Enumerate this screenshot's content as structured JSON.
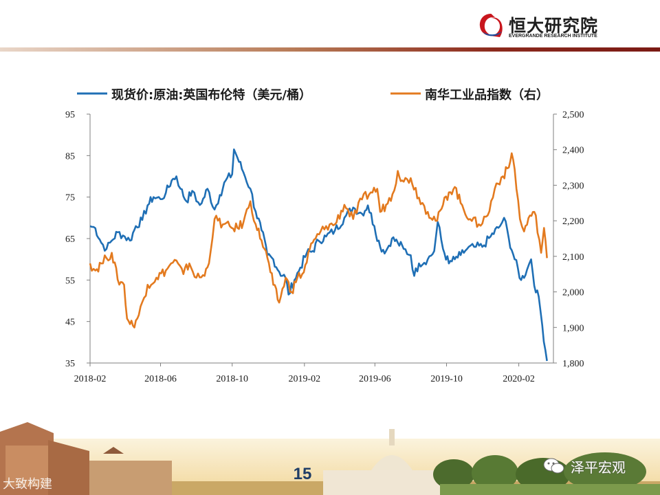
{
  "header": {
    "logo_cn": "恒大研究院",
    "logo_en": "EVERGRANDE RESEARCH INSTITUTE"
  },
  "footer": {
    "page_number": "15",
    "watermark_left": "大致构建",
    "watermark_right": "泽平宏观"
  },
  "colors": {
    "brent": "#1f6fb5",
    "nanhua": "#e37a1f",
    "header_rule_dark": "#7a1a14"
  },
  "chart_data": {
    "type": "line",
    "legend": {
      "position": "top",
      "entries": [
        "现货价:原油:英国布伦特（美元/桶）",
        "南华工业品指数（右）"
      ]
    },
    "x_tick_labels": [
      "2018-02",
      "2018-06",
      "2018-10",
      "2019-02",
      "2019-06",
      "2019-10",
      "2020-02"
    ],
    "x_range": [
      "2018-02-01",
      "2020-03-31"
    ],
    "y_left": {
      "range": [
        35,
        95
      ],
      "ticks": [
        "35",
        "45",
        "55",
        "65",
        "75",
        "85",
        "95"
      ]
    },
    "y_right": {
      "range": [
        1800,
        2500
      ],
      "ticks": [
        "1,800",
        "1,900",
        "2,000",
        "2,100",
        "2,200",
        "2,300",
        "2,400",
        "2,500"
      ]
    },
    "grid": false,
    "series": [
      {
        "name": "现货价:原油:英国布伦特（美元/桶）",
        "axis": "left",
        "points": [
          [
            "2018-02-01",
            68
          ],
          [
            "2018-02-10",
            67.5
          ],
          [
            "2018-02-20",
            64
          ],
          [
            "2018-03-01",
            62.5
          ],
          [
            "2018-03-10",
            64.5
          ],
          [
            "2018-03-20",
            66.5
          ],
          [
            "2018-04-01",
            65.5
          ],
          [
            "2018-04-10",
            64.5
          ],
          [
            "2018-04-20",
            68
          ],
          [
            "2018-05-01",
            69.5
          ],
          [
            "2018-05-10",
            73
          ],
          [
            "2018-05-20",
            75
          ],
          [
            "2018-06-01",
            74.5
          ],
          [
            "2018-06-10",
            76
          ],
          [
            "2018-06-20",
            79
          ],
          [
            "2018-06-28",
            80
          ],
          [
            "2018-07-05",
            77
          ],
          [
            "2018-07-15",
            74
          ],
          [
            "2018-07-25",
            76.5
          ],
          [
            "2018-08-01",
            74
          ],
          [
            "2018-08-10",
            73.5
          ],
          [
            "2018-08-20",
            77
          ],
          [
            "2018-09-01",
            72
          ],
          [
            "2018-09-10",
            75.5
          ],
          [
            "2018-09-20",
            79
          ],
          [
            "2018-10-01",
            80.5
          ],
          [
            "2018-10-04",
            86.5
          ],
          [
            "2018-10-10",
            84.5
          ],
          [
            "2018-10-20",
            81
          ],
          [
            "2018-11-01",
            77
          ],
          [
            "2018-11-10",
            71.5
          ],
          [
            "2018-11-20",
            67
          ],
          [
            "2018-11-30",
            61
          ],
          [
            "2018-12-10",
            60
          ],
          [
            "2018-12-20",
            57
          ],
          [
            "2018-12-31",
            55.5
          ],
          [
            "2019-01-05",
            51.5
          ],
          [
            "2019-01-15",
            55
          ],
          [
            "2019-01-25",
            58
          ],
          [
            "2019-02-05",
            61.5
          ],
          [
            "2019-02-15",
            62
          ],
          [
            "2019-02-25",
            64.5
          ],
          [
            "2019-03-10",
            65.5
          ],
          [
            "2019-03-25",
            67
          ],
          [
            "2019-04-10",
            70
          ],
          [
            "2019-04-25",
            72.5
          ],
          [
            "2019-05-10",
            71
          ],
          [
            "2019-05-20",
            73
          ],
          [
            "2019-05-31",
            68
          ],
          [
            "2019-06-10",
            63
          ],
          [
            "2019-06-20",
            62
          ],
          [
            "2019-06-30",
            65
          ],
          [
            "2019-07-10",
            64
          ],
          [
            "2019-07-20",
            62.5
          ],
          [
            "2019-08-01",
            61
          ],
          [
            "2019-08-07",
            56
          ],
          [
            "2019-08-15",
            59
          ],
          [
            "2019-08-30",
            60
          ],
          [
            "2019-09-10",
            62
          ],
          [
            "2019-09-16",
            69
          ],
          [
            "2019-09-25",
            62.5
          ],
          [
            "2019-10-05",
            59
          ],
          [
            "2019-10-15",
            60
          ],
          [
            "2019-10-25",
            61
          ],
          [
            "2019-11-05",
            62.5
          ],
          [
            "2019-11-20",
            63
          ],
          [
            "2019-12-01",
            63
          ],
          [
            "2019-12-15",
            65.5
          ],
          [
            "2019-12-31",
            68
          ],
          [
            "2020-01-07",
            70
          ],
          [
            "2020-01-15",
            65
          ],
          [
            "2020-01-25",
            60
          ],
          [
            "2020-02-05",
            55
          ],
          [
            "2020-02-15",
            57.5
          ],
          [
            "2020-02-22",
            60
          ],
          [
            "2020-03-01",
            52
          ],
          [
            "2020-03-06",
            51
          ],
          [
            "2020-03-12",
            44
          ],
          [
            "2020-03-20",
            35.5
          ]
        ]
      },
      {
        "name": "南华工业品指数（右）",
        "axis": "right",
        "points": [
          [
            "2018-02-01",
            2080
          ],
          [
            "2018-02-10",
            2060
          ],
          [
            "2018-02-20",
            2080
          ],
          [
            "2018-03-01",
            2095
          ],
          [
            "2018-03-10",
            2110
          ],
          [
            "2018-03-20",
            2035
          ],
          [
            "2018-03-31",
            2020
          ],
          [
            "2018-04-05",
            1925
          ],
          [
            "2018-04-15",
            1905
          ],
          [
            "2018-04-25",
            1935
          ],
          [
            "2018-05-10",
            2020
          ],
          [
            "2018-05-25",
            2040
          ],
          [
            "2018-06-10",
            2060
          ],
          [
            "2018-06-25",
            2090
          ],
          [
            "2018-07-10",
            2050
          ],
          [
            "2018-07-20",
            2080
          ],
          [
            "2018-08-01",
            2040
          ],
          [
            "2018-08-15",
            2045
          ],
          [
            "2018-08-25",
            2110
          ],
          [
            "2018-09-01",
            2205
          ],
          [
            "2018-09-15",
            2190
          ],
          [
            "2018-09-30",
            2180
          ],
          [
            "2018-10-10",
            2180
          ],
          [
            "2018-10-20",
            2195
          ],
          [
            "2018-11-01",
            2255
          ],
          [
            "2018-11-10",
            2190
          ],
          [
            "2018-11-20",
            2145
          ],
          [
            "2018-11-30",
            2095
          ],
          [
            "2018-12-10",
            2020
          ],
          [
            "2018-12-20",
            1970
          ],
          [
            "2018-12-31",
            2040
          ],
          [
            "2019-01-10",
            2000
          ],
          [
            "2019-01-20",
            2040
          ],
          [
            "2019-01-31",
            2055
          ],
          [
            "2019-02-10",
            2120
          ],
          [
            "2019-02-20",
            2150
          ],
          [
            "2019-03-10",
            2185
          ],
          [
            "2019-03-25",
            2190
          ],
          [
            "2019-04-10",
            2245
          ],
          [
            "2019-04-25",
            2205
          ],
          [
            "2019-05-10",
            2260
          ],
          [
            "2019-05-25",
            2280
          ],
          [
            "2019-06-05",
            2290
          ],
          [
            "2019-06-10",
            2225
          ],
          [
            "2019-06-20",
            2245
          ],
          [
            "2019-07-01",
            2275
          ],
          [
            "2019-07-10",
            2340
          ],
          [
            "2019-07-20",
            2310
          ],
          [
            "2019-08-01",
            2320
          ],
          [
            "2019-08-15",
            2265
          ],
          [
            "2019-08-30",
            2225
          ],
          [
            "2019-09-15",
            2200
          ],
          [
            "2019-09-25",
            2245
          ],
          [
            "2019-10-05",
            2280
          ],
          [
            "2019-10-15",
            2295
          ],
          [
            "2019-10-25",
            2250
          ],
          [
            "2019-11-10",
            2205
          ],
          [
            "2019-11-25",
            2190
          ],
          [
            "2019-12-10",
            2215
          ],
          [
            "2019-12-25",
            2305
          ],
          [
            "2020-01-05",
            2325
          ],
          [
            "2020-01-15",
            2350
          ],
          [
            "2020-01-20",
            2390
          ],
          [
            "2020-01-25",
            2345
          ],
          [
            "2020-02-03",
            2205
          ],
          [
            "2020-02-10",
            2170
          ],
          [
            "2020-02-20",
            2215
          ],
          [
            "2020-03-01",
            2215
          ],
          [
            "2020-03-10",
            2110
          ],
          [
            "2020-03-15",
            2180
          ],
          [
            "2020-03-20",
            2095
          ]
        ]
      }
    ]
  }
}
